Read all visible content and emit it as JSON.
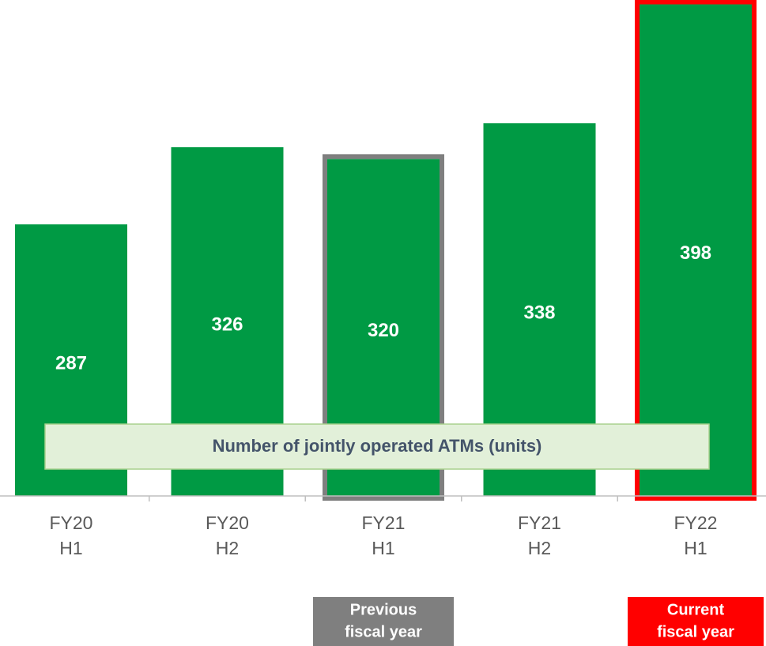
{
  "chart_data": {
    "type": "bar",
    "categories": [
      [
        "FY20",
        "H1"
      ],
      [
        "FY20",
        "H2"
      ],
      [
        "FY21",
        "H1"
      ],
      [
        "FY21",
        "H2"
      ],
      [
        "FY22",
        "H1"
      ]
    ],
    "values": [
      287,
      326,
      320,
      338,
      398
    ],
    "color": "#009a44",
    "ylim": [
      150,
      400
    ],
    "annotation": "Number of jointly operated ATMs (units)",
    "highlights": [
      {
        "index": 2,
        "color": "#7f7f7f",
        "label": [
          "Previous",
          "fiscal year"
        ]
      },
      {
        "index": 4,
        "color": "#ff0000",
        "label": [
          "Current",
          "fiscal year"
        ]
      }
    ]
  }
}
